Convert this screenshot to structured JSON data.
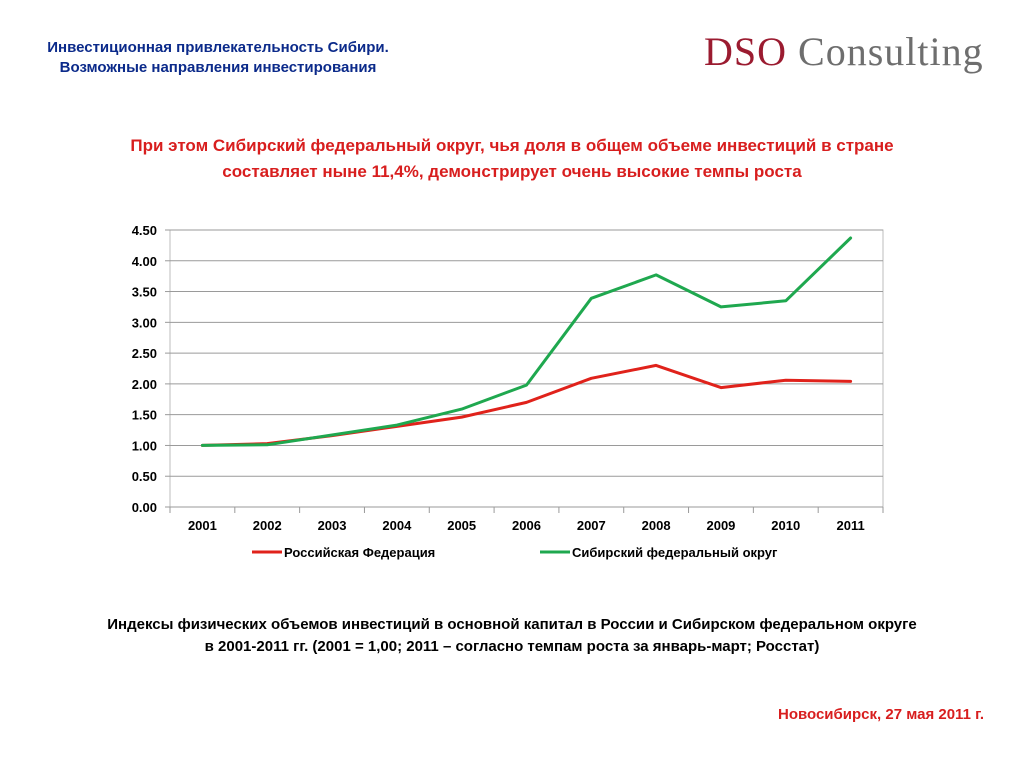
{
  "header": {
    "title_line1": "Инвестиционная привлекательность Сибири.",
    "title_line2": "Возможные направления инвестирования"
  },
  "logo": {
    "part1": "DSO",
    "part2": "Consulting"
  },
  "headline": {
    "line1": "При этом Сибирский федеральный округ, чья доля в общем объеме инвестиций в стране",
    "line2": "составляет ныне 11,4%, демонстрирует очень высокие темпы роста"
  },
  "chart_data": {
    "type": "line",
    "x": [
      "2001",
      "2002",
      "2003",
      "2004",
      "2005",
      "2006",
      "2007",
      "2008",
      "2009",
      "2010",
      "2011"
    ],
    "series": [
      {
        "name": "Российская Федерация",
        "color": "#e0221b",
        "values": [
          1.0,
          1.03,
          1.16,
          1.31,
          1.46,
          1.7,
          2.09,
          2.3,
          1.94,
          2.06,
          2.04
        ]
      },
      {
        "name": "Сибирский федеральный округ",
        "color": "#1fa84f",
        "values": [
          1.0,
          1.01,
          1.17,
          1.33,
          1.59,
          1.98,
          3.39,
          3.77,
          3.25,
          3.35,
          4.37
        ]
      }
    ],
    "ylim": [
      0,
      4.5
    ],
    "yticks": [
      "0.00",
      "0.50",
      "1.00",
      "1.50",
      "2.00",
      "2.50",
      "3.00",
      "3.50",
      "4.00",
      "4.50"
    ],
    "grid": true,
    "legend": "bottom"
  },
  "caption": {
    "line1": "Индексы физических объемов инвестиций в основной капитал в России и Сибирском федеральном округе",
    "line2": "в 2001-2011 гг. (2001 = 1,00; 2011 – согласно темпам роста за январь-март; Росстат)"
  },
  "footer": {
    "text": "Новосибирск, 27 мая 2011 г."
  }
}
